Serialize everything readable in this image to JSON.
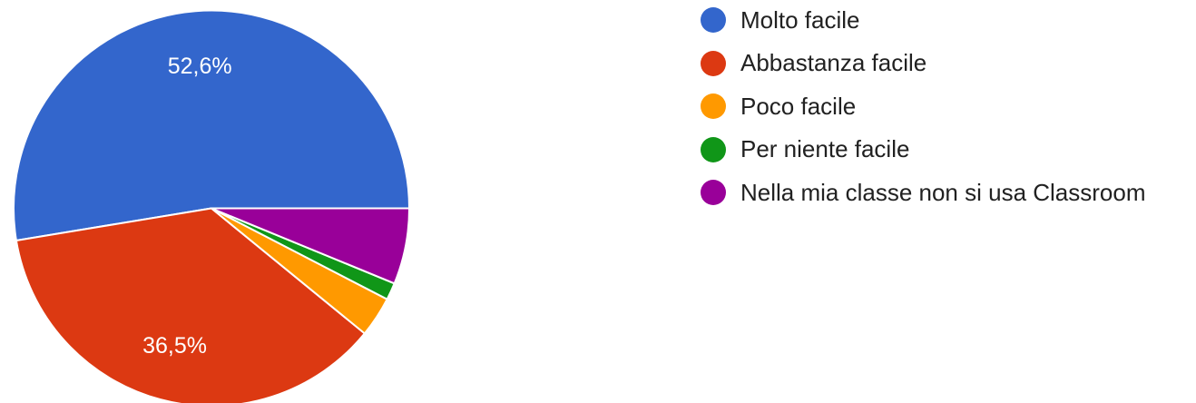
{
  "chart_data": {
    "type": "pie",
    "categories": [
      "Molto facile",
      "Abbastanza facile",
      "Poco facile",
      "Per niente facile",
      "Nella mia classe non si usa Classroom"
    ],
    "values": [
      52.6,
      36.5,
      3.3,
      1.4,
      6.2
    ],
    "data_labels": [
      "52,6%",
      "36,5%",
      "",
      "",
      ""
    ],
    "colors": [
      "#3366cc",
      "#dc3912",
      "#ff9900",
      "#109618",
      "#990099"
    ],
    "start_angle_deg": 0,
    "direction": "counterclockwise",
    "legend_position": "right"
  }
}
